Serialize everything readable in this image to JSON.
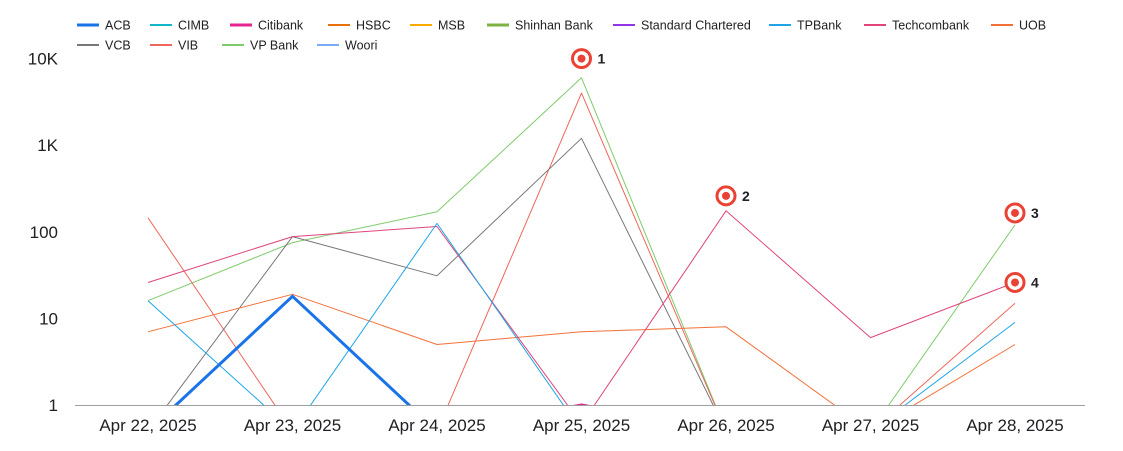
{
  "chart_data": {
    "type": "line",
    "y_scale": "log",
    "ylim": [
      1,
      10000
    ],
    "y_ticks": [
      "1",
      "10",
      "100",
      "1K",
      "10K"
    ],
    "y_tick_values": [
      1,
      10,
      100,
      1000,
      10000
    ],
    "categories": [
      "Apr 22, 2025",
      "Apr 23, 2025",
      "Apr 24, 2025",
      "Apr 25, 2025",
      "Apr 26, 2025",
      "Apr 27, 2025",
      "Apr 28, 2025"
    ],
    "legend_position": "top",
    "grid": false,
    "series": [
      {
        "name": "ACB",
        "color": "#1a73e8",
        "width": 3,
        "values": [
          0.5,
          18,
          0.5,
          null,
          null,
          null,
          null
        ]
      },
      {
        "name": "CIMB",
        "color": "#12b5cb",
        "width": 2,
        "values": [
          null,
          null,
          null,
          null,
          null,
          null,
          null
        ]
      },
      {
        "name": "Citibank",
        "color": "#e52592",
        "width": 3,
        "values": [
          null,
          null,
          0.5,
          1,
          0.5,
          null,
          null
        ]
      },
      {
        "name": "HSBC",
        "color": "#e8710a",
        "width": 2,
        "values": [
          null,
          null,
          null,
          null,
          null,
          null,
          null
        ]
      },
      {
        "name": "MSB",
        "color": "#f9ab00",
        "width": 2,
        "values": [
          null,
          null,
          null,
          null,
          null,
          null,
          null
        ]
      },
      {
        "name": "Shinhan Bank",
        "color": "#7cb342",
        "width": 3,
        "values": [
          null,
          null,
          null,
          null,
          null,
          null,
          null
        ]
      },
      {
        "name": "Standard Chartered",
        "color": "#9334e6",
        "width": 1,
        "values": [
          null,
          null,
          null,
          null,
          null,
          null,
          null
        ]
      },
      {
        "name": "TPBank",
        "color": "#1ea5e8",
        "width": 1,
        "values": [
          16,
          0.5,
          125,
          0.5,
          null,
          0.5,
          9
        ]
      },
      {
        "name": "Techcombank",
        "color": "#e0457b",
        "width": 1,
        "values": [
          26,
          88,
          115,
          0.6,
          175,
          6,
          26
        ]
      },
      {
        "name": "UOB",
        "color": "#f2713a",
        "width": 1,
        "values": [
          7,
          19,
          5,
          7,
          8,
          0.5,
          5
        ]
      },
      {
        "name": "VCB",
        "color": "#777777",
        "width": 1,
        "values": [
          0.5,
          88,
          31,
          1200,
          0.5,
          null,
          null
        ]
      },
      {
        "name": "VIB",
        "color": "#ee675c",
        "width": 1,
        "values": [
          145,
          0.5,
          0.5,
          4000,
          0.5,
          0.5,
          15
        ]
      },
      {
        "name": "VP Bank",
        "color": "#7ecb6c",
        "width": 1,
        "values": [
          16,
          75,
          170,
          6000,
          0.5,
          0.5,
          120
        ]
      },
      {
        "name": "Woori",
        "color": "#7baaf7",
        "width": 1,
        "values": [
          null,
          null,
          null,
          null,
          null,
          null,
          null
        ]
      }
    ],
    "annotations": [
      {
        "label": "1",
        "category_index": 3,
        "value": 10000
      },
      {
        "label": "2",
        "category_index": 4,
        "value": 260
      },
      {
        "label": "3",
        "category_index": 6,
        "value": 165
      },
      {
        "label": "4",
        "category_index": 6,
        "value": 26
      }
    ]
  }
}
